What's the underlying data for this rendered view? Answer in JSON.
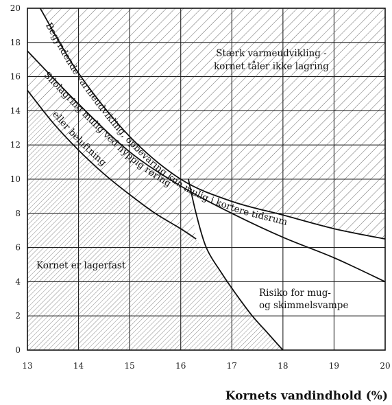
{
  "chart_data": {
    "type": "line",
    "xlabel": "Kornets vandindhold (%)",
    "ylabel": "",
    "xlim": [
      13,
      20
    ],
    "ylim": [
      0,
      20
    ],
    "x_ticks": [
      "13",
      "14",
      "15",
      "16",
      "17",
      "18",
      "19",
      "20"
    ],
    "y_ticks": [
      "0",
      "2",
      "4",
      "6",
      "8",
      "10",
      "12",
      "14",
      "16",
      "18",
      "20"
    ],
    "grid": true,
    "series": [
      {
        "name": "Begyndende varmeudvikling, opbevaring kun mulig i kortere tidsrum",
        "x": [
          13.25,
          14.0,
          15.0,
          16.0,
          17.0,
          18.0,
          19.0,
          20.0
        ],
        "y": [
          20.0,
          16.2,
          12.5,
          10.0,
          8.7,
          7.9,
          7.1,
          6.5
        ]
      },
      {
        "name": "Silolagring mulig ved hyppig røring eller beluftning",
        "x": [
          13.0,
          14.0,
          15.0,
          16.0,
          17.0,
          18.0,
          19.0,
          20.0
        ],
        "y": [
          17.5,
          14.4,
          11.6,
          9.6,
          8.0,
          6.6,
          5.4,
          4.0
        ]
      },
      {
        "name": "Kornet er lagerfast",
        "x": [
          13.0,
          13.5,
          14.0,
          14.5,
          15.0,
          15.5,
          16.0,
          16.3
        ],
        "y": [
          15.2,
          13.3,
          11.7,
          10.3,
          9.1,
          8.0,
          7.1,
          6.5
        ]
      },
      {
        "name": "Risiko for mug- og skimmelsvampe",
        "x": [
          16.15,
          16.3,
          16.5,
          16.8,
          17.1,
          17.4,
          17.7,
          18.0
        ],
        "y": [
          10.0,
          8.0,
          6.0,
          4.5,
          3.2,
          2.0,
          1.0,
          0.0
        ]
      }
    ],
    "labels": {
      "strong_heat": "Stærk varmeudvikling -\nkornet tåler ikke lagring",
      "beginning_heat": "Begyndende varmeudvikling, opbevaring kun mulig i kortere tidsrum",
      "silo": "Silolagring mulig ved hyppig røring",
      "silo_cont": "eller beluftning",
      "storable": "Kornet er lagerfast",
      "mold": "Risiko for mug-\nog skimmelsvampe"
    }
  }
}
